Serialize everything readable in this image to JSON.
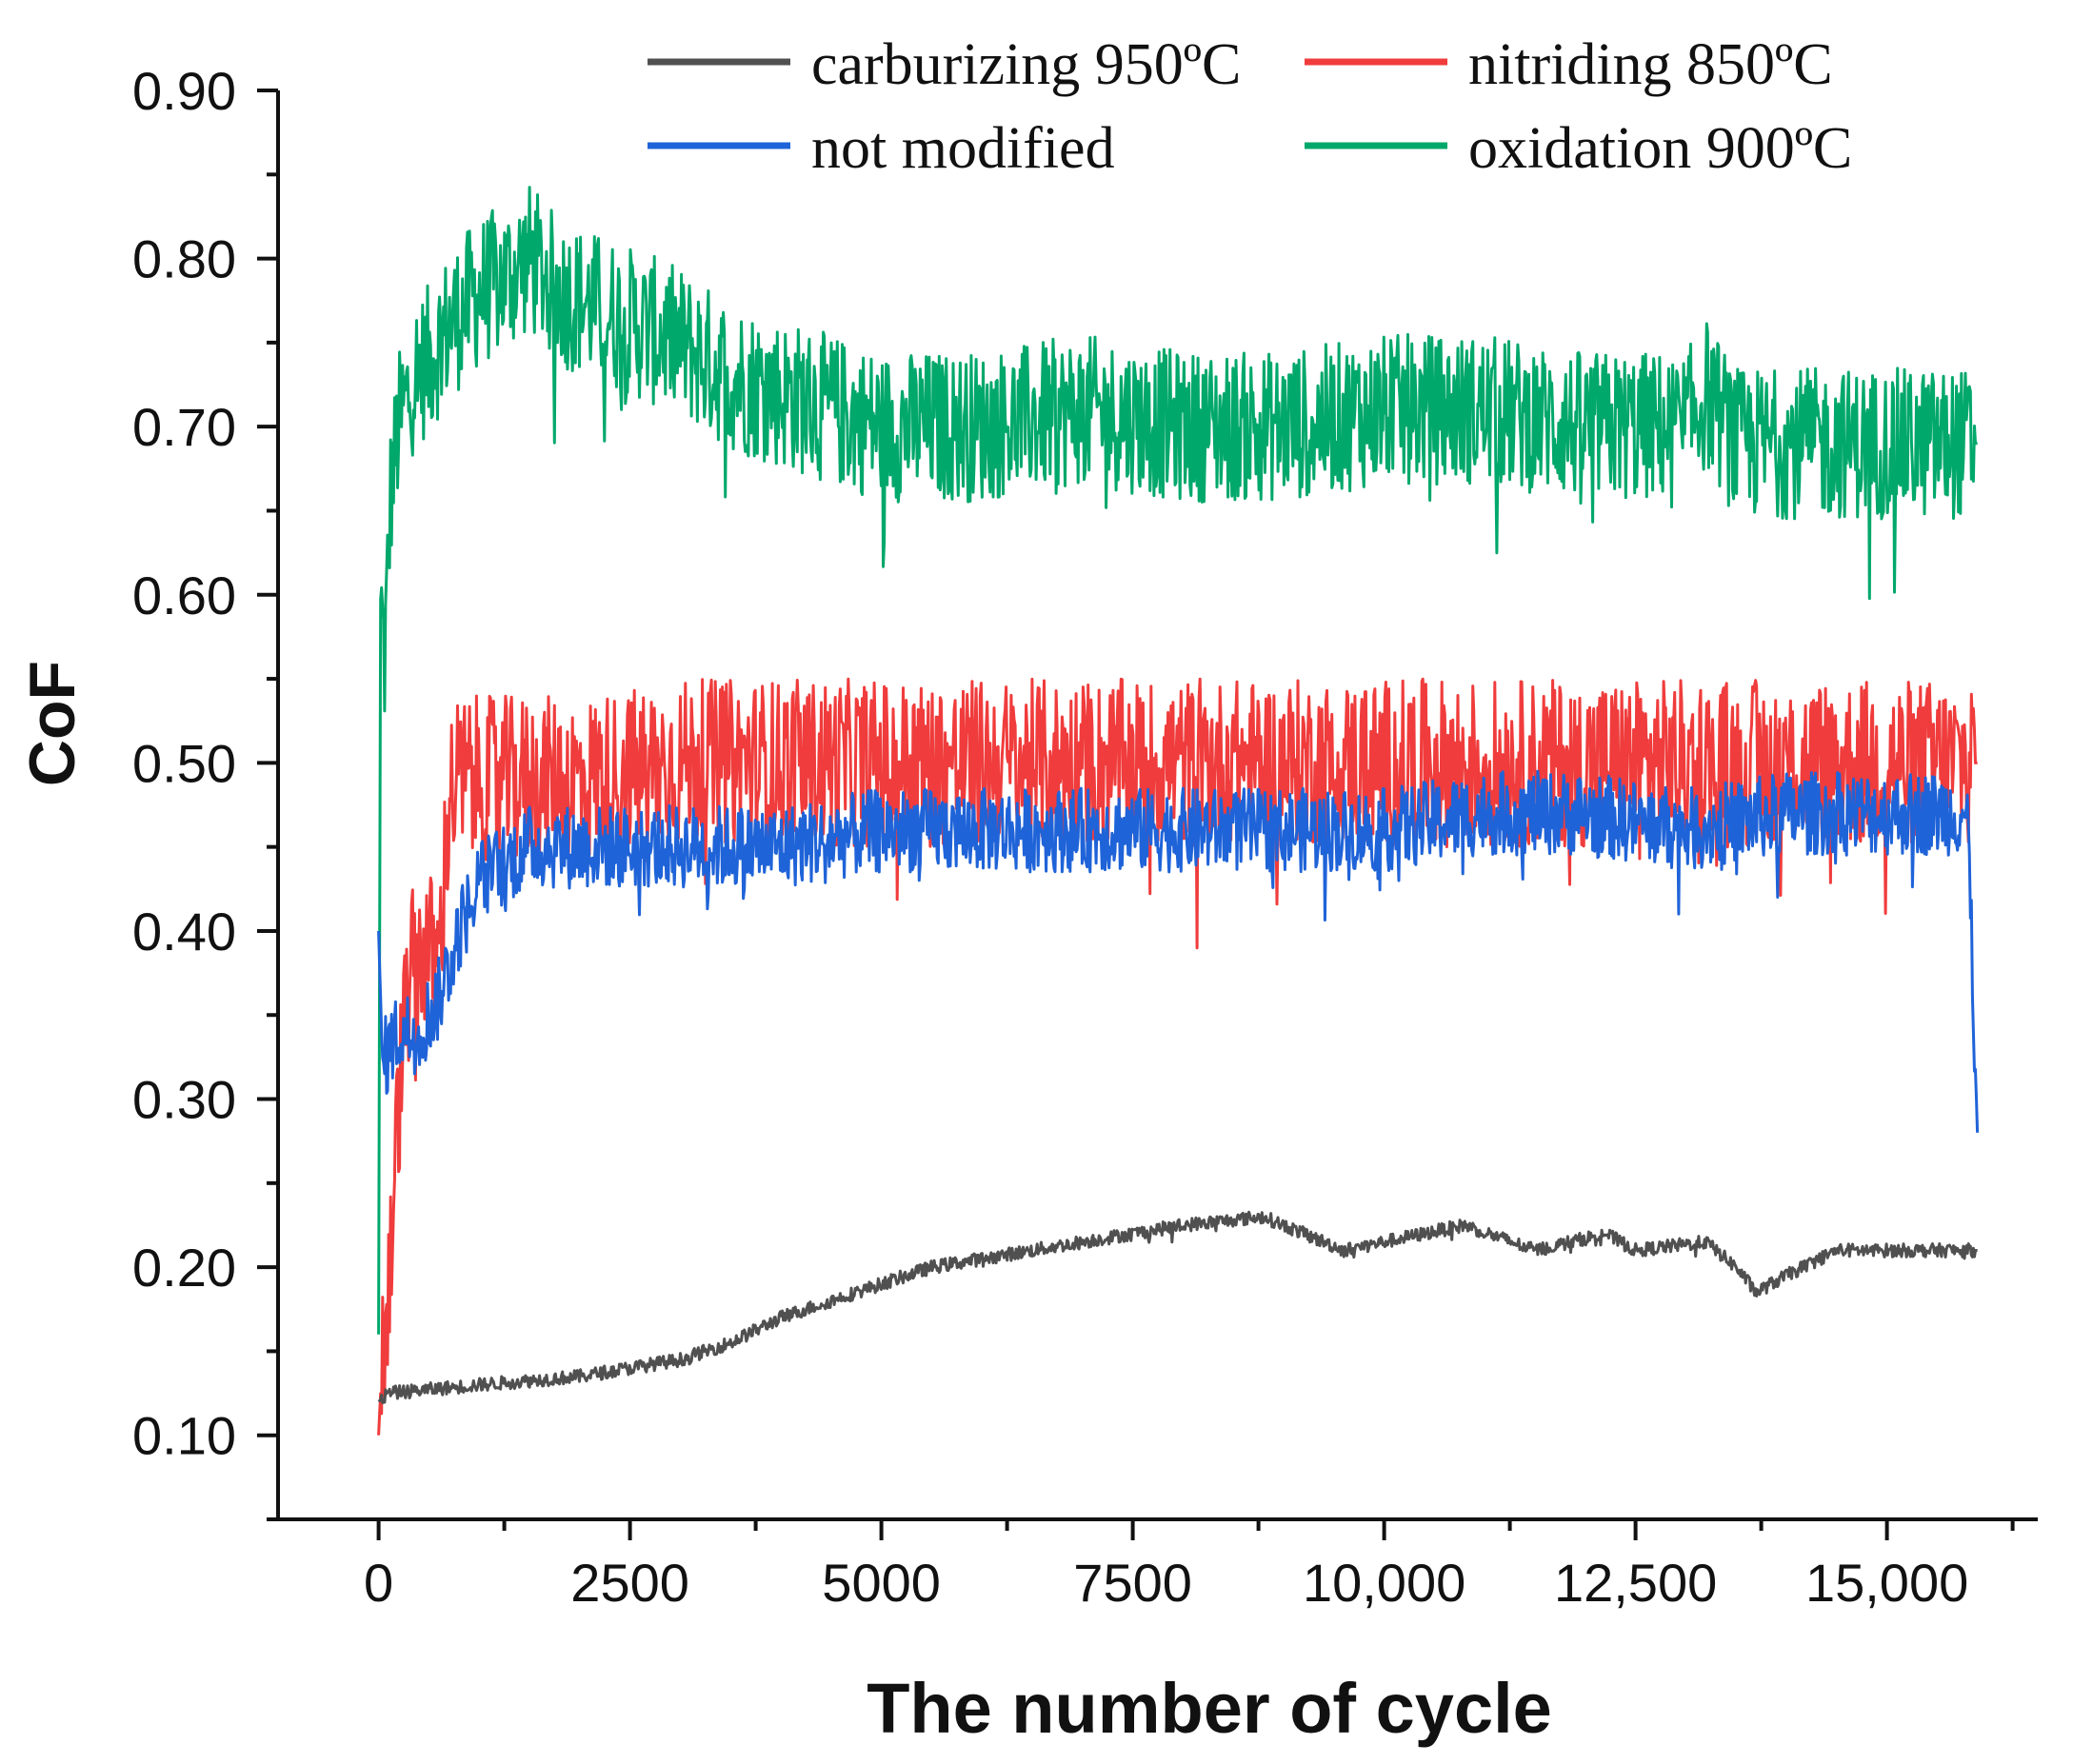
{
  "chart_data": {
    "type": "line",
    "title": "",
    "xlabel": "The number of cycle",
    "ylabel": "CoF",
    "xlim": [
      -1000,
      16500
    ],
    "ylim": [
      0.05,
      0.9
    ],
    "xticks": [
      {
        "value": 0,
        "label": "0"
      },
      {
        "value": 2500,
        "label": "2500"
      },
      {
        "value": 5000,
        "label": "5000"
      },
      {
        "value": 7500,
        "label": "7500"
      },
      {
        "value": 10000,
        "label": "10,000"
      },
      {
        "value": 12500,
        "label": "12,500"
      },
      {
        "value": 15000,
        "label": "15,000"
      }
    ],
    "yticks": [
      {
        "value": 0.1,
        "label": "0.10"
      },
      {
        "value": 0.2,
        "label": "0.20"
      },
      {
        "value": 0.3,
        "label": "0.30"
      },
      {
        "value": 0.4,
        "label": "0.40"
      },
      {
        "value": 0.5,
        "label": "0.50"
      },
      {
        "value": 0.6,
        "label": "0.60"
      },
      {
        "value": 0.7,
        "label": "0.70"
      },
      {
        "value": 0.8,
        "label": "0.80"
      },
      {
        "value": 0.9,
        "label": "0.90"
      }
    ],
    "grid": false,
    "legend_position": "top",
    "series": [
      {
        "name": "oxidation 900ºC",
        "color": "#00a86b",
        "noise": 0.045,
        "x": [
          0,
          20,
          60,
          120,
          200,
          350,
          500,
          700,
          1000,
          1300,
          1500,
          1800,
          2200,
          2600,
          3000,
          3500,
          4000,
          4500,
          5000,
          6000,
          7000,
          8000,
          9000,
          10000,
          11000,
          12000,
          13000,
          13200,
          13500,
          14000,
          15000,
          15900
        ],
        "y": [
          0.16,
          0.6,
          0.56,
          0.66,
          0.7,
          0.73,
          0.74,
          0.76,
          0.78,
          0.79,
          0.8,
          0.78,
          0.77,
          0.76,
          0.75,
          0.73,
          0.72,
          0.71,
          0.7,
          0.7,
          0.71,
          0.7,
          0.7,
          0.71,
          0.71,
          0.7,
          0.7,
          0.72,
          0.69,
          0.69,
          0.69,
          0.69
        ]
      },
      {
        "name": "nitriding 850ºC",
        "color": "#f03c3c",
        "noise": 0.05,
        "x": [
          0,
          40,
          100,
          200,
          300,
          450,
          600,
          700,
          800,
          1000,
          2000,
          3000,
          4000,
          5000,
          6000,
          7000,
          8000,
          9000,
          10000,
          11000,
          12000,
          13000,
          14000,
          15000,
          15900
        ],
        "y": [
          0.1,
          0.15,
          0.18,
          0.3,
          0.37,
          0.39,
          0.38,
          0.48,
          0.49,
          0.49,
          0.49,
          0.5,
          0.5,
          0.5,
          0.5,
          0.5,
          0.5,
          0.5,
          0.5,
          0.5,
          0.5,
          0.5,
          0.5,
          0.5,
          0.5
        ]
      },
      {
        "name": "not modified",
        "color": "#1f63d8",
        "noise": 0.025,
        "x": [
          0,
          40,
          100,
          200,
          400,
          600,
          800,
          1000,
          1500,
          2000,
          3000,
          4000,
          5000,
          6000,
          7000,
          8000,
          9000,
          10000,
          11000,
          12000,
          13000,
          14000,
          15000,
          15800,
          15900
        ],
        "y": [
          0.4,
          0.32,
          0.33,
          0.34,
          0.34,
          0.36,
          0.4,
          0.43,
          0.45,
          0.45,
          0.45,
          0.45,
          0.46,
          0.46,
          0.46,
          0.46,
          0.46,
          0.46,
          0.47,
          0.47,
          0.46,
          0.47,
          0.47,
          0.47,
          0.28
        ]
      },
      {
        "name": "carburizing 950ºC",
        "color": "#505050",
        "noise": 0.004,
        "x": [
          0,
          100,
          1000,
          2000,
          3000,
          3500,
          4000,
          4500,
          5000,
          5500,
          6000,
          7000,
          8000,
          8800,
          9200,
          9600,
          10000,
          10800,
          11500,
          12200,
          12500,
          13200,
          13500,
          13700,
          14000,
          14500,
          15000,
          15900
        ],
        "y": [
          0.12,
          0.125,
          0.13,
          0.135,
          0.145,
          0.155,
          0.17,
          0.18,
          0.19,
          0.2,
          0.205,
          0.215,
          0.225,
          0.23,
          0.22,
          0.21,
          0.215,
          0.225,
          0.21,
          0.22,
          0.21,
          0.215,
          0.2,
          0.185,
          0.195,
          0.21,
          0.21,
          0.21
        ]
      }
    ],
    "legend_order": [
      3,
      1,
      2,
      0
    ]
  }
}
